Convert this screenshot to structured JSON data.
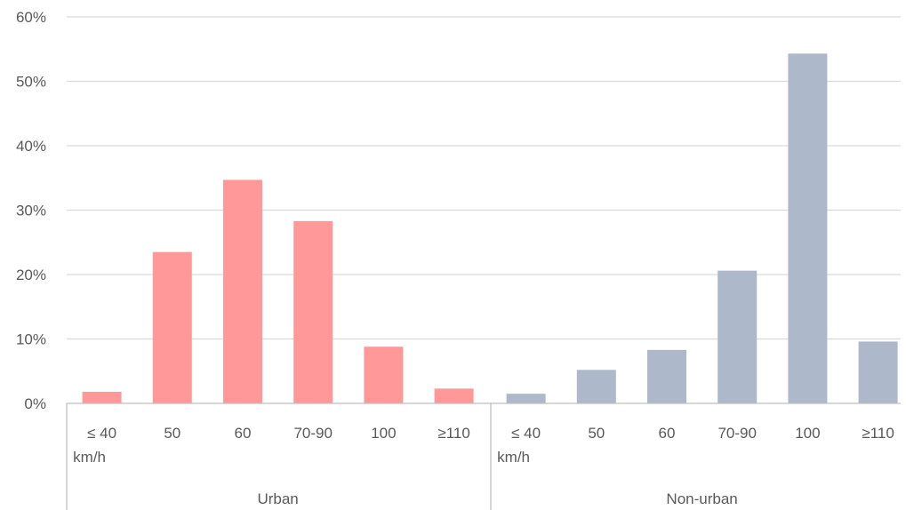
{
  "chart_data": {
    "type": "bar",
    "title": "",
    "xlabel": "",
    "ylabel": "",
    "ylim": [
      0,
      60
    ],
    "yticks": [
      "0%",
      "10%",
      "20%",
      "30%",
      "40%",
      "50%",
      "60%"
    ],
    "grid": true,
    "legend": "none",
    "groups": [
      {
        "name": "Urban",
        "color": "#ff9999",
        "categories": [
          "≤ 40\nkm/h",
          "50",
          "60",
          "70-90",
          "100",
          "≥110"
        ],
        "values": [
          1.8,
          23.5,
          34.7,
          28.3,
          8.8,
          2.3
        ]
      },
      {
        "name": "Non-urban",
        "color": "#adb9ca",
        "categories": [
          "≤ 40\nkm/h",
          "50",
          "60",
          "70-90",
          "100",
          "≥110"
        ],
        "values": [
          1.5,
          5.2,
          8.3,
          20.6,
          54.3,
          9.6
        ]
      }
    ]
  }
}
